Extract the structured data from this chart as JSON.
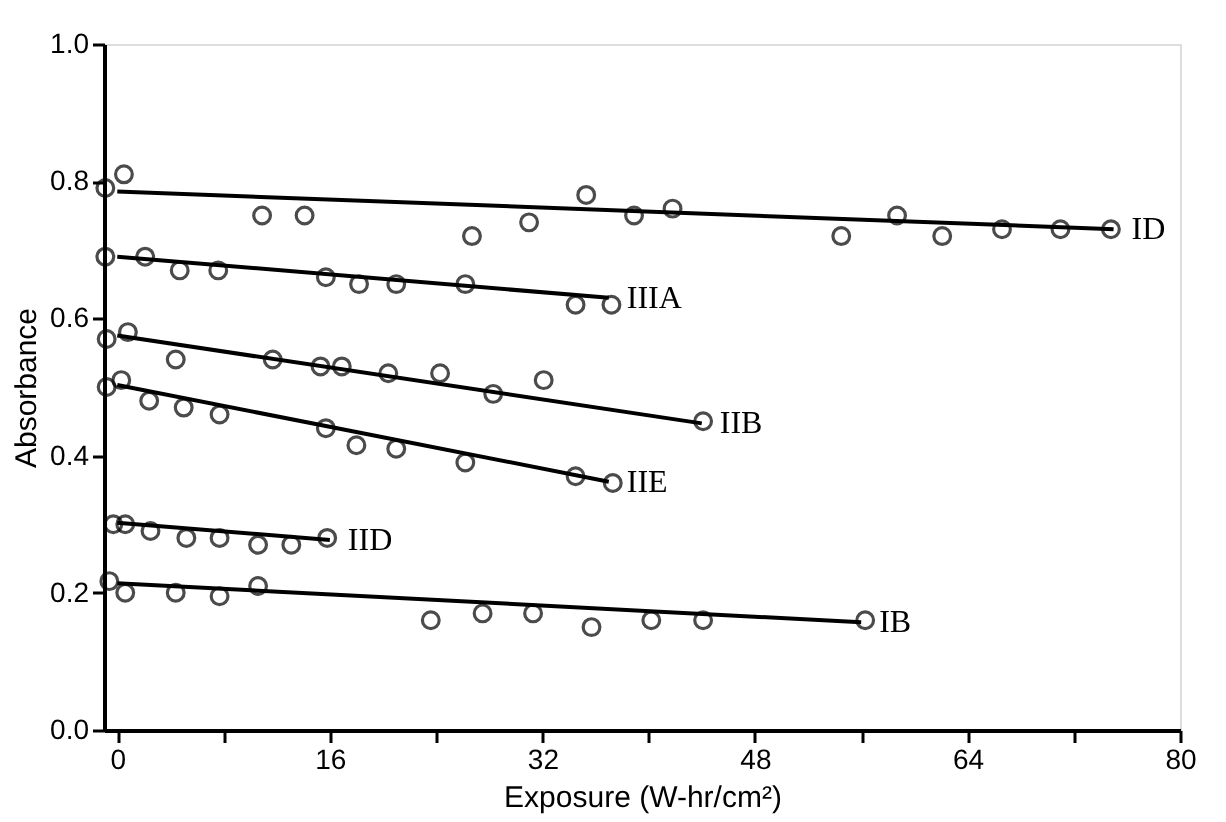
{
  "chart_data": {
    "type": "scatter",
    "xlabel": "Exposure (W-hr/cm²)",
    "ylabel": "Absorbance",
    "grid": false,
    "xlim": [
      -1,
      80
    ],
    "ylim": [
      0,
      1
    ],
    "xticks": [
      0,
      {
        "value": 8,
        "label": null
      },
      16,
      {
        "value": 24,
        "label": null
      },
      32,
      {
        "value": 40,
        "label": null
      },
      48,
      {
        "value": 56,
        "label": null
      },
      64,
      {
        "value": 72,
        "label": null
      },
      80
    ],
    "yticks": [
      {
        "value": 0,
        "label": "0.0"
      },
      {
        "value": 0.2,
        "label": "0.2"
      },
      {
        "value": 0.4,
        "label": "0.4"
      },
      {
        "value": 0.6,
        "label": "0.6"
      },
      {
        "value": 0.8,
        "label": "0.8"
      },
      {
        "value": 1.0,
        "label": "1.0"
      }
    ],
    "series": [
      {
        "marker": "circle",
        "color": "#000000",
        "x": [
          -0.9,
          0.5,
          10.9,
          14.1,
          26.7,
          31,
          35.3,
          38.9,
          41.8,
          54.5,
          58.7,
          62.1,
          66.6,
          71,
          74.8
        ],
        "values": [
          0.79,
          0.81,
          0.75,
          0.75,
          0.72,
          0.74,
          0.78,
          0.75,
          0.76,
          0.72,
          0.75,
          0.72,
          0.73,
          0.73,
          0.73
        ]
      },
      {
        "type": "line",
        "name": "ID",
        "color": "#000000",
        "line_style": "solid",
        "x": [
          0,
          75
        ],
        "values": [
          0.785,
          0.73
        ]
      },
      {
        "marker": "circle",
        "color": "#000000",
        "x": [
          -0.9,
          2.1,
          4.7,
          7.6,
          15.7,
          18.2,
          21,
          26.2,
          34.5,
          37.2
        ],
        "values": [
          0.69,
          0.69,
          0.67,
          0.67,
          0.66,
          0.65,
          0.65,
          0.65,
          0.62,
          0.62
        ]
      },
      {
        "type": "line",
        "name": "IIIA",
        "color": "#000000",
        "line_style": "solid",
        "x": [
          0,
          37
        ],
        "values": [
          0.69,
          0.63
        ]
      },
      {
        "marker": "circle",
        "color": "#000000",
        "x": [
          -0.8,
          0.8,
          4.4,
          11.7,
          15.3,
          16.9,
          20.4,
          24.3,
          28.3,
          32.1,
          44.1
        ],
        "values": [
          0.57,
          0.58,
          0.54,
          0.54,
          0.53,
          0.53,
          0.52,
          0.52,
          0.49,
          0.51,
          0.45
        ]
      },
      {
        "type": "line",
        "name": "IIB",
        "color": "#000000",
        "line_style": "solid",
        "x": [
          0,
          44
        ],
        "values": [
          0.575,
          0.447
        ]
      },
      {
        "marker": "circle",
        "color": "#000000",
        "x": [
          -0.8,
          0.3,
          2.4,
          5,
          7.7,
          15.7,
          18,
          21,
          26.2,
          34.5,
          37.3
        ],
        "values": [
          0.5,
          0.51,
          0.48,
          0.47,
          0.46,
          0.44,
          0.415,
          0.41,
          0.39,
          0.37,
          0.36
        ]
      },
      {
        "type": "line",
        "name": "IIE",
        "color": "#000000",
        "line_style": "solid",
        "x": [
          0,
          37
        ],
        "values": [
          0.503,
          0.362
        ]
      },
      {
        "marker": "circle",
        "color": "#000000",
        "x": [
          -0.3,
          0.6,
          2.5,
          5.2,
          7.7,
          10.6,
          13.1,
          15.8
        ],
        "values": [
          0.3,
          0.3,
          0.29,
          0.28,
          0.28,
          0.27,
          0.27,
          0.28
        ]
      },
      {
        "type": "line",
        "name": "IID",
        "color": "#000000",
        "line_style": "solid",
        "x": [
          0,
          16
        ],
        "values": [
          0.302,
          0.277
        ]
      },
      {
        "marker": "circle",
        "color": "#000000",
        "x": [
          -0.6,
          0.6,
          4.4,
          7.7,
          10.6,
          23.6,
          27.5,
          31.3,
          35.7,
          40.2,
          44.1,
          56.3
        ],
        "values": [
          0.217,
          0.2,
          0.2,
          0.195,
          0.21,
          0.16,
          0.17,
          0.17,
          0.15,
          0.16,
          0.16,
          0.16
        ]
      },
      {
        "type": "line",
        "name": "IB",
        "color": "#000000",
        "line_style": "solid",
        "x": [
          0,
          56
        ],
        "values": [
          0.214,
          0.157
        ]
      }
    ]
  }
}
